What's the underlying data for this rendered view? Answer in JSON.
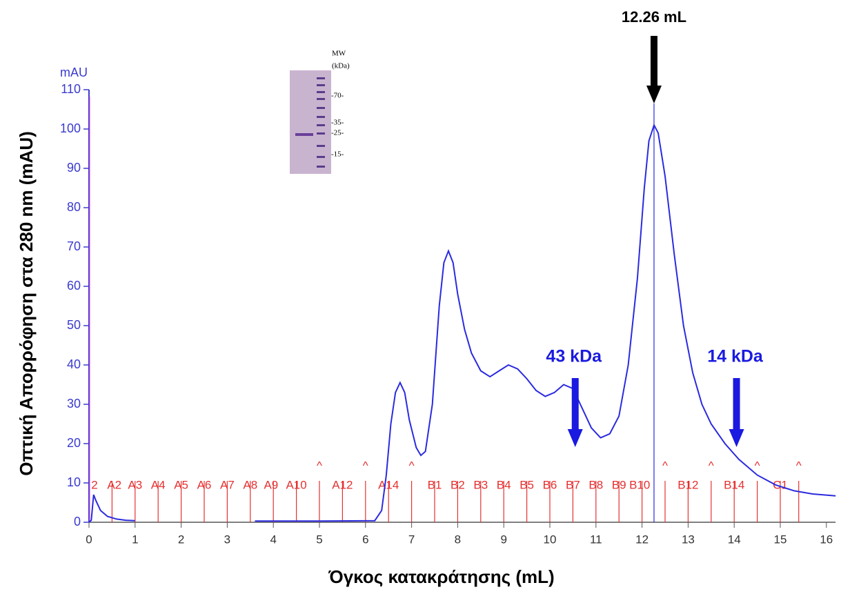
{
  "chart_data": {
    "type": "line",
    "y_unit": "mAU",
    "y_label": "Οπτική Απορρόφηση στα 280 nm (mAU)",
    "x_label": "Όγκος κατακράτησης (mL)",
    "color": "#2a2ae0",
    "xlim": [
      0,
      16.2
    ],
    "ylim": [
      0,
      110
    ],
    "xticks": [
      0,
      1,
      2,
      3,
      4,
      5,
      6,
      7,
      8,
      9,
      10,
      11,
      12,
      13,
      14,
      15,
      16
    ],
    "yticks": [
      0,
      10,
      20,
      30,
      40,
      50,
      60,
      70,
      80,
      90,
      100,
      110
    ],
    "x": [
      0,
      0.05,
      0.1,
      0.15,
      0.25,
      0.4,
      0.6,
      0.8,
      1.0,
      2.0,
      3.6,
      5,
      6.2,
      6.35,
      6.45,
      6.55,
      6.65,
      6.75,
      6.85,
      6.95,
      7.1,
      7.2,
      7.3,
      7.45,
      7.6,
      7.7,
      7.8,
      7.9,
      8.0,
      8.15,
      8.3,
      8.5,
      8.7,
      8.9,
      9.1,
      9.3,
      9.5,
      9.7,
      9.9,
      10.1,
      10.3,
      10.5,
      10.7,
      10.9,
      11.1,
      11.3,
      11.5,
      11.7,
      11.9,
      12.05,
      12.15,
      12.26,
      12.35,
      12.5,
      12.7,
      12.9,
      13.1,
      13.3,
      13.5,
      13.8,
      14.1,
      14.5,
      14.9,
      15.3,
      15.7,
      16.2
    ],
    "y": [
      0,
      0.5,
      7,
      5.5,
      3,
      1.5,
      0.8,
      0.5,
      0.4,
      null,
      0.3,
      0.3,
      0.4,
      3,
      12,
      25,
      33,
      35.5,
      33,
      26,
      19,
      17,
      18,
      30,
      55,
      66,
      69,
      66,
      58,
      49,
      43,
      38.5,
      37,
      38.5,
      40,
      39,
      36.5,
      33.5,
      32,
      33,
      35,
      34,
      29,
      24,
      21.5,
      22.5,
      27,
      40,
      62,
      85,
      97,
      101,
      99,
      88,
      68,
      50,
      38,
      30,
      25,
      20,
      16,
      12,
      9.5,
      8,
      7.2,
      6.7
    ],
    "peak_line_x": 12.26,
    "fraction_marks": [
      0.5,
      1.0,
      1.5,
      2.0,
      2.5,
      3.0,
      3.5,
      4.0,
      4.5,
      5.0,
      5.5,
      6.0,
      6.5,
      7.0,
      7.5,
      8.0,
      8.5,
      9.0,
      9.5,
      10.0,
      10.5,
      11.0,
      11.5,
      12.0,
      12.5,
      13.0,
      13.5,
      14.0,
      14.5,
      15.0,
      15.4
    ],
    "fractions": {
      "labels": [
        "2",
        "A2",
        "A3",
        "A4",
        "A5",
        "A6",
        "A7",
        "A8",
        "A9",
        "A10",
        "A12",
        "A14",
        "B1",
        "B2",
        "B3",
        "B4",
        "B5",
        "B6",
        "B7",
        "B8",
        "B9",
        "B10",
        "B12",
        "B14",
        "C1"
      ],
      "x": [
        0.12,
        0.55,
        1.0,
        1.5,
        2.0,
        2.5,
        3.0,
        3.5,
        3.95,
        4.5,
        5.5,
        6.5,
        7.5,
        8.0,
        8.5,
        9.0,
        9.5,
        10.0,
        10.5,
        11.0,
        11.5,
        11.95,
        13.0,
        14.0,
        15.0
      ]
    },
    "carets": {
      "symbol": "^",
      "x": [
        5.0,
        6.0,
        7.0,
        12.5,
        13.5,
        14.5,
        15.4
      ]
    },
    "annotations": [
      {
        "text": "12.26 mL",
        "x": 12.26,
        "color": "#000000"
      },
      {
        "text": "43 kDa",
        "x": 10.55,
        "color": "#1a1ae0"
      },
      {
        "text": "14 kDa",
        "x": 14.05,
        "color": "#1a1ae0"
      }
    ],
    "gel": {
      "title": [
        "MW",
        "(kDa)"
      ],
      "markers": [
        "-70-",
        "-35-",
        "-25-",
        "-15-"
      ]
    }
  }
}
